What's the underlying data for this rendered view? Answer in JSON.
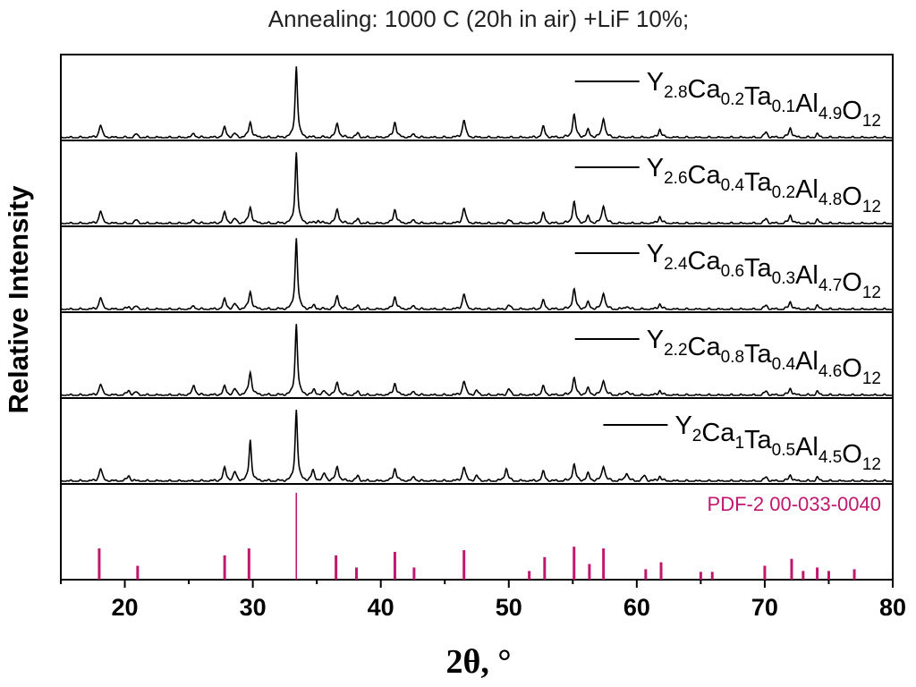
{
  "chart_data": {
    "type": "line",
    "title": "Annealing: 1000 C (20h in air) +LiF 10%;",
    "xlabel": "2θ, °",
    "ylabel": "Relative Intensity",
    "xlim": [
      15,
      80
    ],
    "xticks": [
      20,
      30,
      40,
      50,
      60,
      70,
      80
    ],
    "legend_placement": "top-right of each panel",
    "series": [
      {
        "formula": [
          [
            "Y",
            ""
          ],
          [
            "",
            "2.8"
          ],
          [
            "Ca",
            ""
          ],
          [
            "",
            "0.2"
          ],
          [
            "Ta",
            ""
          ],
          [
            "",
            "0.1"
          ],
          [
            "Al",
            ""
          ],
          [
            "",
            "4.9"
          ],
          [
            "O",
            ""
          ],
          [
            "",
            "12"
          ]
        ],
        "peaks": [
          [
            18.1,
            0.18
          ],
          [
            20.9,
            0.05
          ],
          [
            25.4,
            0.06
          ],
          [
            27.8,
            0.14
          ],
          [
            28.6,
            0.05
          ],
          [
            29.8,
            0.22
          ],
          [
            33.4,
            1.0
          ],
          [
            36.6,
            0.2
          ],
          [
            38.2,
            0.06
          ],
          [
            41.1,
            0.22
          ],
          [
            42.6,
            0.05
          ],
          [
            46.5,
            0.25
          ],
          [
            52.7,
            0.15
          ],
          [
            55.1,
            0.32
          ],
          [
            56.2,
            0.1
          ],
          [
            57.4,
            0.28
          ],
          [
            61.8,
            0.12
          ],
          [
            70.1,
            0.08
          ],
          [
            72.0,
            0.14
          ],
          [
            74.1,
            0.05
          ]
        ]
      },
      {
        "formula": [
          [
            "Y",
            ""
          ],
          [
            "",
            "2.6"
          ],
          [
            "Ca",
            ""
          ],
          [
            "",
            "0.4"
          ],
          [
            "Ta",
            ""
          ],
          [
            "",
            "0.2"
          ],
          [
            "Al",
            ""
          ],
          [
            "",
            "4.8"
          ],
          [
            "O",
            ""
          ],
          [
            "",
            "12"
          ]
        ],
        "peaks": [
          [
            18.1,
            0.18
          ],
          [
            20.9,
            0.05
          ],
          [
            25.4,
            0.05
          ],
          [
            27.8,
            0.15
          ],
          [
            28.6,
            0.06
          ],
          [
            29.8,
            0.23
          ],
          [
            33.4,
            1.0
          ],
          [
            35.1,
            0.04
          ],
          [
            36.6,
            0.2
          ],
          [
            38.2,
            0.06
          ],
          [
            41.1,
            0.2
          ],
          [
            42.6,
            0.05
          ],
          [
            46.5,
            0.22
          ],
          [
            50.0,
            0.05
          ],
          [
            52.7,
            0.14
          ],
          [
            55.1,
            0.3
          ],
          [
            56.2,
            0.09
          ],
          [
            57.4,
            0.26
          ],
          [
            61.8,
            0.1
          ],
          [
            70.1,
            0.07
          ],
          [
            72.0,
            0.12
          ],
          [
            74.1,
            0.05
          ]
        ]
      },
      {
        "formula": [
          [
            "Y",
            ""
          ],
          [
            "",
            "2.4"
          ],
          [
            "Ca",
            ""
          ],
          [
            "",
            "0.6"
          ],
          [
            "Ta",
            ""
          ],
          [
            "",
            "0.3"
          ],
          [
            "Al",
            ""
          ],
          [
            "",
            "4.7"
          ],
          [
            "O",
            ""
          ],
          [
            "",
            "12"
          ]
        ],
        "peaks": [
          [
            18.1,
            0.17
          ],
          [
            20.3,
            0.04
          ],
          [
            20.9,
            0.04
          ],
          [
            25.4,
            0.05
          ],
          [
            27.8,
            0.14
          ],
          [
            28.6,
            0.07
          ],
          [
            29.8,
            0.25
          ],
          [
            33.4,
            1.0
          ],
          [
            34.8,
            0.05
          ],
          [
            36.6,
            0.19
          ],
          [
            38.2,
            0.05
          ],
          [
            41.1,
            0.18
          ],
          [
            42.6,
            0.05
          ],
          [
            46.5,
            0.22
          ],
          [
            50.0,
            0.06
          ],
          [
            52.7,
            0.12
          ],
          [
            55.1,
            0.28
          ],
          [
            56.2,
            0.09
          ],
          [
            57.4,
            0.24
          ],
          [
            59.2,
            0.05
          ],
          [
            61.8,
            0.08
          ],
          [
            70.1,
            0.06
          ],
          [
            72.0,
            0.11
          ],
          [
            74.1,
            0.05
          ]
        ]
      },
      {
        "formula": [
          [
            "Y",
            ""
          ],
          [
            "",
            "2.2"
          ],
          [
            "Ca",
            ""
          ],
          [
            "",
            "0.8"
          ],
          [
            "Ta",
            ""
          ],
          [
            "",
            "0.4"
          ],
          [
            "Al",
            ""
          ],
          [
            "",
            "4.6"
          ],
          [
            "O",
            ""
          ],
          [
            "",
            "12"
          ]
        ],
        "peaks": [
          [
            18.1,
            0.16
          ],
          [
            20.3,
            0.07
          ],
          [
            20.9,
            0.04
          ],
          [
            25.4,
            0.14
          ],
          [
            27.8,
            0.12
          ],
          [
            28.6,
            0.08
          ],
          [
            29.8,
            0.32
          ],
          [
            33.4,
            1.0
          ],
          [
            34.8,
            0.07
          ],
          [
            35.6,
            0.05
          ],
          [
            36.6,
            0.18
          ],
          [
            38.2,
            0.05
          ],
          [
            41.1,
            0.17
          ],
          [
            42.6,
            0.05
          ],
          [
            46.5,
            0.2
          ],
          [
            47.5,
            0.06
          ],
          [
            50.0,
            0.09
          ],
          [
            52.7,
            0.12
          ],
          [
            55.1,
            0.24
          ],
          [
            56.2,
            0.09
          ],
          [
            57.4,
            0.22
          ],
          [
            59.2,
            0.07
          ],
          [
            61.8,
            0.07
          ],
          [
            70.1,
            0.06
          ],
          [
            72.0,
            0.1
          ],
          [
            74.1,
            0.05
          ]
        ]
      },
      {
        "formula": [
          [
            "Y",
            ""
          ],
          [
            "",
            "2"
          ],
          [
            "Ca",
            ""
          ],
          [
            "",
            "1"
          ],
          [
            "Ta",
            ""
          ],
          [
            "",
            "0.5"
          ],
          [
            "Al",
            ""
          ],
          [
            "",
            "4.5"
          ],
          [
            "O",
            ""
          ],
          [
            "",
            "12"
          ]
        ],
        "peaks": [
          [
            18.1,
            0.18
          ],
          [
            20.3,
            0.08
          ],
          [
            27.8,
            0.18
          ],
          [
            28.6,
            0.12
          ],
          [
            29.8,
            0.58
          ],
          [
            33.4,
            1.0
          ],
          [
            34.7,
            0.14
          ],
          [
            35.6,
            0.1
          ],
          [
            36.6,
            0.2
          ],
          [
            38.2,
            0.07
          ],
          [
            41.1,
            0.18
          ],
          [
            42.6,
            0.06
          ],
          [
            46.5,
            0.2
          ],
          [
            47.5,
            0.07
          ],
          [
            49.8,
            0.18
          ],
          [
            52.7,
            0.13
          ],
          [
            55.1,
            0.23
          ],
          [
            56.2,
            0.1
          ],
          [
            57.4,
            0.22
          ],
          [
            59.2,
            0.12
          ],
          [
            60.6,
            0.08
          ],
          [
            61.8,
            0.07
          ],
          [
            70.1,
            0.06
          ],
          [
            72.0,
            0.09
          ],
          [
            74.1,
            0.05
          ]
        ]
      }
    ],
    "reference": {
      "label": "PDF-2 00-033-0040",
      "color": "#c0186e",
      "lines": [
        [
          18.0,
          0.36
        ],
        [
          21.0,
          0.16
        ],
        [
          27.8,
          0.28
        ],
        [
          29.7,
          0.36
        ],
        [
          33.4,
          1.0
        ],
        [
          36.5,
          0.28
        ],
        [
          38.1,
          0.14
        ],
        [
          41.1,
          0.32
        ],
        [
          42.6,
          0.14
        ],
        [
          46.5,
          0.34
        ],
        [
          51.6,
          0.1
        ],
        [
          52.8,
          0.26
        ],
        [
          55.1,
          0.38
        ],
        [
          56.3,
          0.18
        ],
        [
          57.4,
          0.36
        ],
        [
          60.7,
          0.12
        ],
        [
          61.9,
          0.2
        ],
        [
          65.0,
          0.09
        ],
        [
          65.9,
          0.09
        ],
        [
          70.0,
          0.16
        ],
        [
          72.1,
          0.24
        ],
        [
          73.0,
          0.1
        ],
        [
          74.1,
          0.14
        ],
        [
          75.0,
          0.1
        ],
        [
          77.0,
          0.12
        ]
      ]
    }
  }
}
